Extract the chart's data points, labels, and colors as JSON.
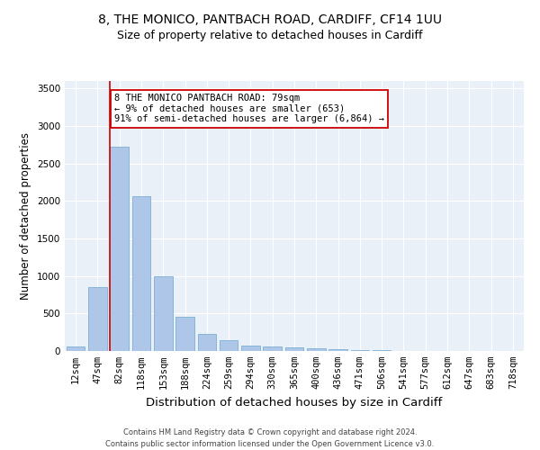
{
  "title_line1": "8, THE MONICO, PANTBACH ROAD, CARDIFF, CF14 1UU",
  "title_line2": "Size of property relative to detached houses in Cardiff",
  "xlabel": "Distribution of detached houses by size in Cardiff",
  "ylabel": "Number of detached properties",
  "bar_color": "#aec6e8",
  "bar_edge_color": "#7aafd4",
  "background_color": "#eaf0f8",
  "categories": [
    "12sqm",
    "47sqm",
    "82sqm",
    "118sqm",
    "153sqm",
    "188sqm",
    "224sqm",
    "259sqm",
    "294sqm",
    "330sqm",
    "365sqm",
    "400sqm",
    "436sqm",
    "471sqm",
    "506sqm",
    "541sqm",
    "577sqm",
    "612sqm",
    "647sqm",
    "683sqm",
    "718sqm"
  ],
  "values": [
    60,
    850,
    2730,
    2060,
    1000,
    460,
    230,
    150,
    70,
    55,
    45,
    35,
    20,
    15,
    10,
    5,
    5,
    3,
    2,
    2,
    1
  ],
  "ylim": [
    0,
    3600
  ],
  "yticks": [
    0,
    500,
    1000,
    1500,
    2000,
    2500,
    3000,
    3500
  ],
  "annotation_line1": "8 THE MONICO PANTBACH ROAD: 79sqm",
  "annotation_line2": "← 9% of detached houses are smaller (653)",
  "annotation_line3": "91% of semi-detached houses are larger (6,864) →",
  "vline_color": "#cc0000",
  "annotation_box_color": "#cc0000",
  "footer_line1": "Contains HM Land Registry data © Crown copyright and database right 2024.",
  "footer_line2": "Contains public sector information licensed under the Open Government Licence v3.0.",
  "title_fontsize": 10,
  "subtitle_fontsize": 9,
  "tick_fontsize": 7.5,
  "ylabel_fontsize": 8.5,
  "xlabel_fontsize": 9.5,
  "annotation_fontsize": 7.5,
  "footer_fontsize": 6.0
}
